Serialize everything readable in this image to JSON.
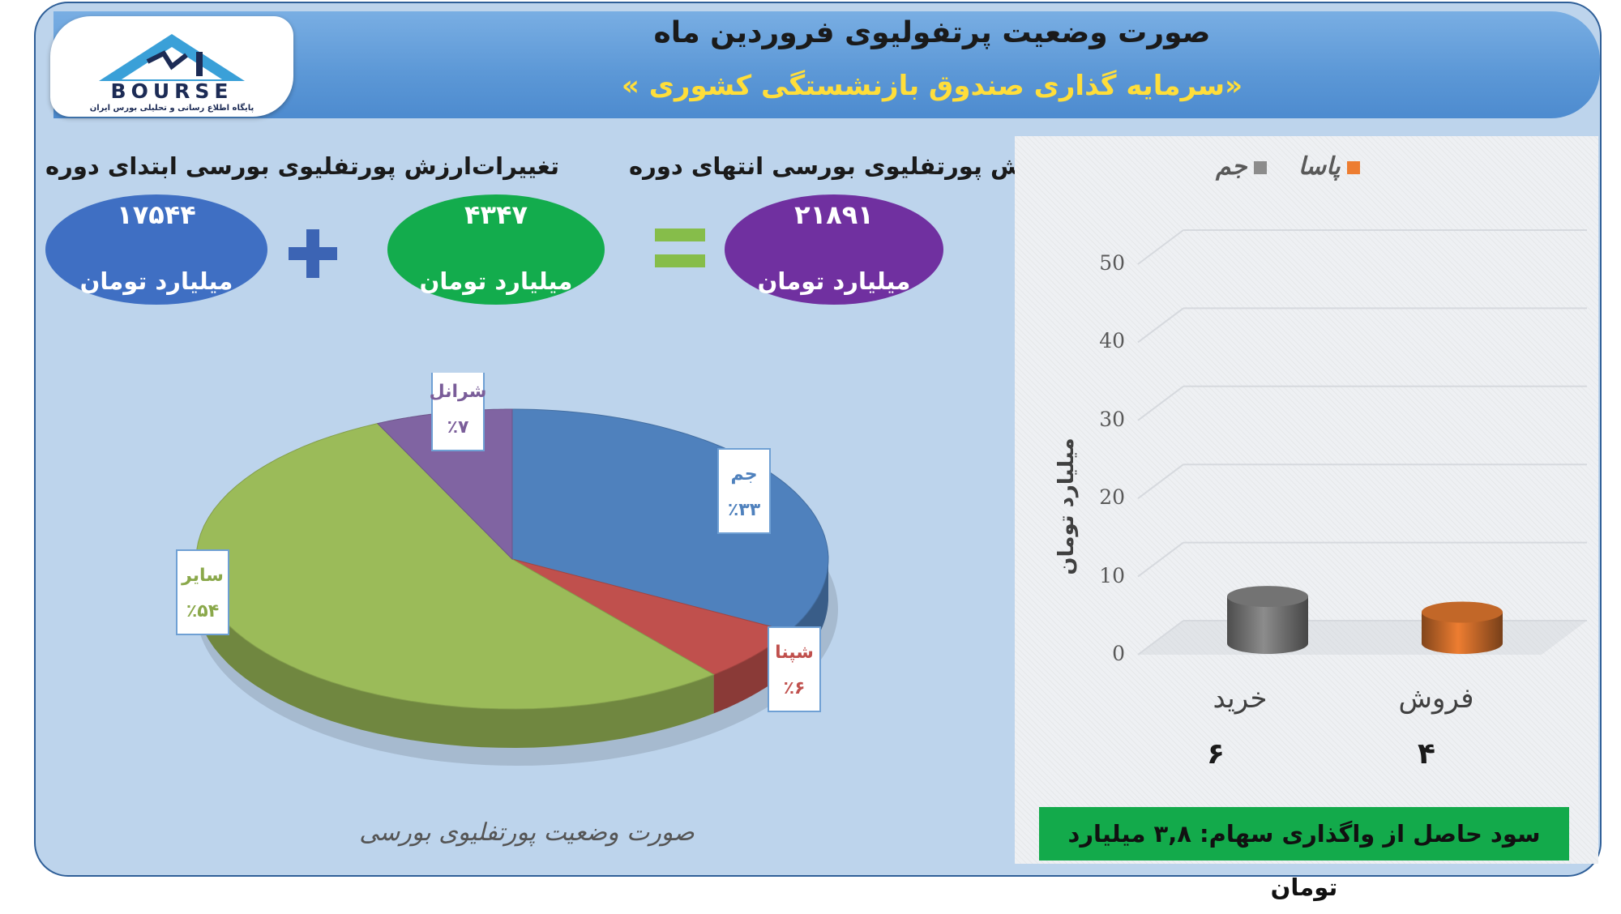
{
  "header": {
    "title": "صورت وضعیت پرتفولیوی فروردین ماه",
    "subtitle": "«سرمایه گذاری صندوق بازنشستگی کشوری »"
  },
  "logo": {
    "wordmark": "BOURSE",
    "tagline": "پایگاه اطلاع رسانی و تحلیلی بورس ایران"
  },
  "equation": {
    "start": {
      "label": "ارزش پورتفلیوی بورسی ابتدای دوره",
      "value": "۱۷۵۴۴",
      "unit": "میلیارد تومان",
      "color": "#3f6fc3"
    },
    "operator_plus": "+",
    "change": {
      "label": "تغییرات",
      "value": "۴۳۴۷",
      "unit": "میلیارد تومان",
      "color": "#13ac4d"
    },
    "operator_equals": "=",
    "end": {
      "label": "ارزش پورتفلیوی بورسی انتهای دوره",
      "value": "۲۱۸۹۱",
      "unit": "میلیارد تومان",
      "color": "#7030a0"
    }
  },
  "chart_data": [
    {
      "type": "pie",
      "title": "صورت وضعیت پورتفلیوی بورسی",
      "slices": [
        {
          "label": "جم",
          "value": 33,
          "display": "٪۳۳",
          "color": "#4f81bd"
        },
        {
          "label": "شپنا",
          "value": 6,
          "display": "٪۶",
          "color": "#c0504d"
        },
        {
          "label": "سایر",
          "value": 54,
          "display": "٪۵۴",
          "color": "#9bbb59"
        },
        {
          "label": "شرانل",
          "value": 7,
          "display": "٪۷",
          "color": "#8064a2"
        }
      ]
    },
    {
      "type": "bar",
      "categories": [
        "خرید",
        "فروش"
      ],
      "series": [
        {
          "name": "جم",
          "values": [
            6,
            null
          ],
          "color": "#8c8c8c"
        },
        {
          "name": "پاسا",
          "values": [
            null,
            4
          ],
          "color": "#ed7d31"
        }
      ],
      "value_labels": [
        "۶",
        "۴"
      ],
      "ylabel": "میلیارد تومان",
      "ylim": [
        0,
        50
      ],
      "yticks": [
        0,
        10,
        20,
        30,
        40,
        50
      ],
      "grid": true,
      "legend": "top"
    }
  ],
  "profit_note": "سود حاصل از واگذاری سهام: ۳,۸ میلیارد تومان"
}
